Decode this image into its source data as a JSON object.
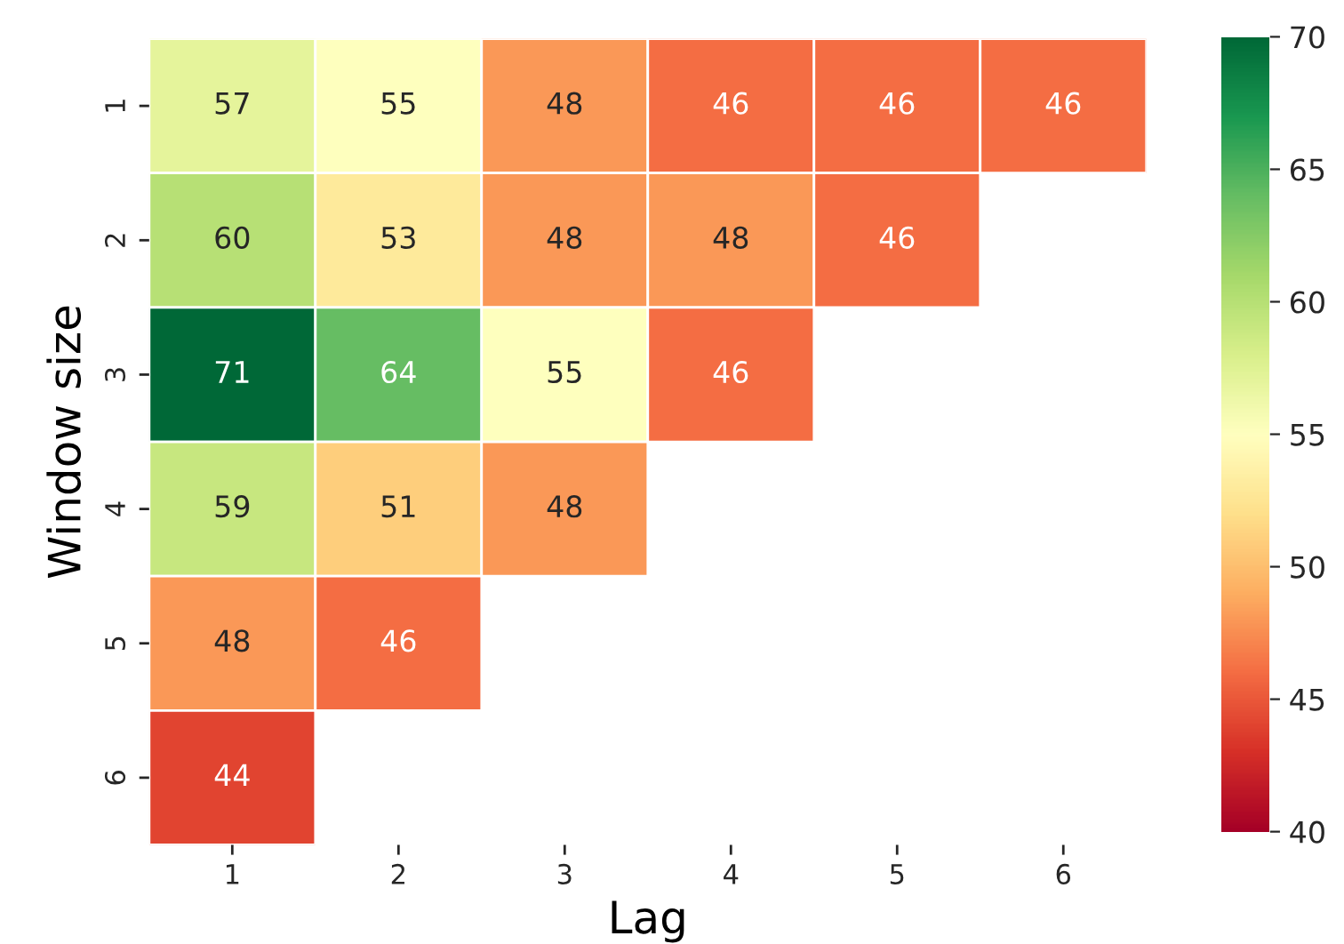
{
  "chart_data": {
    "type": "heatmap",
    "xlabel": "Lag",
    "ylabel": "Window size",
    "categories": [
      "1",
      "2",
      "3",
      "4",
      "5",
      "6"
    ],
    "y_categories": [
      "1",
      "2",
      "3",
      "4",
      "5",
      "6"
    ],
    "cells": [
      [
        57,
        55,
        48,
        46,
        46,
        46
      ],
      [
        60,
        53,
        48,
        48,
        46,
        null
      ],
      [
        71,
        64,
        55,
        46,
        null,
        null
      ],
      [
        59,
        51,
        48,
        null,
        null,
        null
      ],
      [
        48,
        46,
        null,
        null,
        null,
        null
      ],
      [
        44,
        null,
        null,
        null,
        null,
        null
      ]
    ],
    "data_labels": true,
    "clim": [
      40,
      70
    ],
    "cticks": [
      40,
      45,
      50,
      55,
      60,
      65,
      70
    ]
  }
}
